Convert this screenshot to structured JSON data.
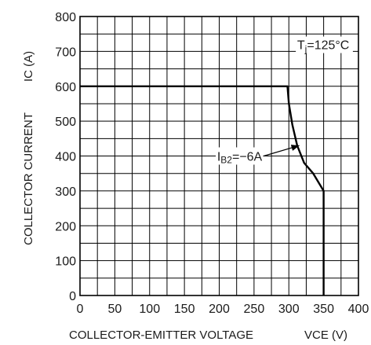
{
  "chart_data": {
    "type": "line",
    "title": "",
    "xlabel": "COLLECTOR-EMITTER VOLTAGE",
    "xlabel_symbol": "VCE (V)",
    "ylabel": "COLLECTOR CURRENT",
    "ylabel_symbol": "IC (A)",
    "xlim": [
      0,
      400
    ],
    "ylim": [
      0,
      800
    ],
    "x_ticks": [
      0,
      50,
      100,
      150,
      200,
      250,
      300,
      350,
      400
    ],
    "y_ticks": [
      0,
      100,
      200,
      300,
      400,
      500,
      600,
      700,
      800
    ],
    "x_tick_labels": [
      "0",
      "50",
      "100",
      "150",
      "200",
      "250",
      "300",
      "350",
      "400"
    ],
    "y_tick_labels": [
      "0",
      "100",
      "200",
      "300",
      "400",
      "500",
      "600",
      "700",
      "800"
    ],
    "grid": true,
    "minor_grid_step_x": 25,
    "minor_grid_step_y": 50,
    "series": [
      {
        "name": "IB2=−6A",
        "x": [
          0,
          298,
          300,
          305,
          312,
          322,
          335,
          350,
          350
        ],
        "y": [
          600,
          600,
          550,
          490,
          430,
          380,
          350,
          300,
          0
        ]
      }
    ],
    "annotations": {
      "condition": "Tj=125°C",
      "series_label": "IB2=−6A"
    },
    "colors": {
      "line": "#000000",
      "grid": "#000000",
      "text": "#1a1a1a"
    }
  }
}
